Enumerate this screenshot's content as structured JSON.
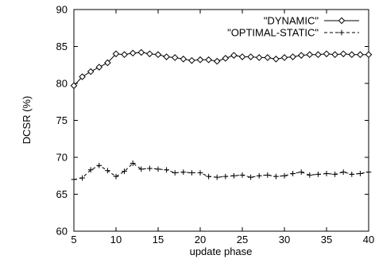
{
  "chart_data": {
    "type": "line",
    "title": "",
    "xlabel": "update phase",
    "ylabel": "DCSR (%)",
    "xlim": [
      5,
      40
    ],
    "ylim": [
      60,
      90
    ],
    "x_ticks": [
      5,
      10,
      15,
      20,
      25,
      30,
      35,
      40
    ],
    "y_ticks": [
      60,
      65,
      70,
      75,
      80,
      85,
      90
    ],
    "grid": false,
    "legend_position": "top-right",
    "x": [
      5,
      6,
      7,
      8,
      9,
      10,
      11,
      12,
      13,
      14,
      15,
      16,
      17,
      18,
      19,
      20,
      21,
      22,
      23,
      24,
      25,
      26,
      27,
      28,
      29,
      30,
      31,
      32,
      33,
      34,
      35,
      36,
      37,
      38,
      39,
      40
    ],
    "series": [
      {
        "name": "\"DYNAMIC\"",
        "marker": "diamond",
        "line": "solid",
        "color": "#000000",
        "values": [
          79.7,
          80.9,
          81.6,
          82.2,
          82.8,
          84.0,
          83.9,
          84.1,
          84.2,
          84.0,
          83.9,
          83.6,
          83.5,
          83.3,
          83.1,
          83.2,
          83.2,
          83.0,
          83.4,
          83.8,
          83.6,
          83.6,
          83.5,
          83.5,
          83.3,
          83.5,
          83.6,
          83.8,
          83.9,
          83.9,
          84.0,
          83.9,
          84.0,
          83.9,
          83.9,
          83.9
        ]
      },
      {
        "name": "\"OPTIMAL-STATIC\"",
        "marker": "plus",
        "line": "dashed",
        "color": "#000000",
        "values": [
          67.0,
          67.2,
          68.3,
          68.9,
          68.2,
          67.4,
          68.1,
          69.2,
          68.4,
          68.5,
          68.4,
          68.3,
          67.9,
          68.0,
          67.9,
          67.9,
          67.4,
          67.3,
          67.4,
          67.5,
          67.6,
          67.3,
          67.5,
          67.6,
          67.4,
          67.5,
          67.8,
          68.0,
          67.6,
          67.7,
          67.8,
          67.7,
          68.0,
          67.7,
          67.8,
          68.0
        ]
      }
    ]
  }
}
